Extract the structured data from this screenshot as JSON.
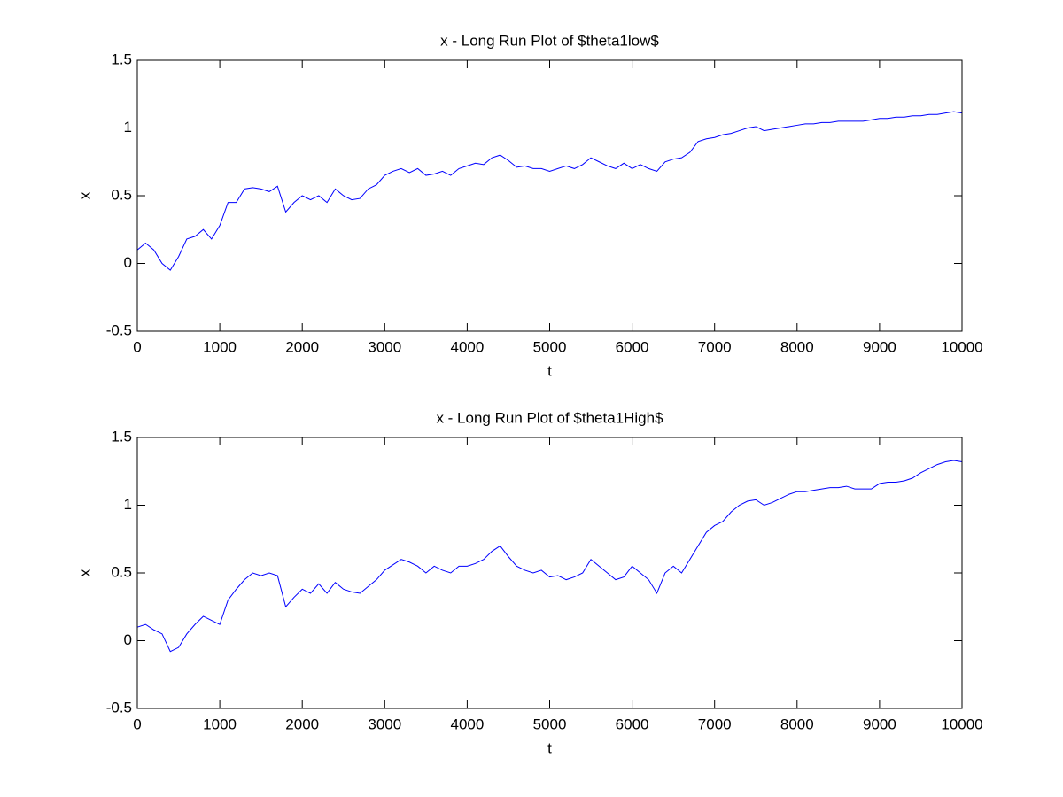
{
  "chart_data": [
    {
      "type": "line",
      "title": "x - Long Run Plot of $theta1low$",
      "x_label": "t",
      "y_label": "x",
      "color": "#0000ff",
      "x": [
        0,
        100,
        200,
        300,
        400,
        500,
        600,
        700,
        800,
        900,
        1000,
        1100,
        1200,
        1300,
        1400,
        1500,
        1600,
        1700,
        1800,
        1900,
        2000,
        2100,
        2200,
        2300,
        2400,
        2500,
        2600,
        2700,
        2800,
        2900,
        3000,
        3100,
        3200,
        3300,
        3400,
        3500,
        3600,
        3700,
        3800,
        3900,
        4000,
        4100,
        4200,
        4300,
        4400,
        4500,
        4600,
        4700,
        4800,
        4900,
        5000,
        5100,
        5200,
        5300,
        5400,
        5500,
        5600,
        5700,
        5800,
        5900,
        6000,
        6100,
        6200,
        6300,
        6400,
        6500,
        6600,
        6700,
        6800,
        6900,
        7000,
        7100,
        7200,
        7300,
        7400,
        7500,
        7600,
        7700,
        7800,
        7900,
        8000,
        8100,
        8200,
        8300,
        8400,
        8500,
        8600,
        8700,
        8800,
        8900,
        9000,
        9100,
        9200,
        9300,
        9400,
        9500,
        9600,
        9700,
        9800,
        9900,
        10000
      ],
      "values": [
        0.1,
        0.15,
        0.1,
        0.0,
        -0.05,
        0.05,
        0.18,
        0.2,
        0.25,
        0.18,
        0.28,
        0.45,
        0.45,
        0.55,
        0.56,
        0.55,
        0.53,
        0.57,
        0.38,
        0.45,
        0.5,
        0.47,
        0.5,
        0.45,
        0.55,
        0.5,
        0.47,
        0.48,
        0.55,
        0.58,
        0.65,
        0.68,
        0.7,
        0.67,
        0.7,
        0.65,
        0.66,
        0.68,
        0.65,
        0.7,
        0.72,
        0.74,
        0.73,
        0.78,
        0.8,
        0.76,
        0.71,
        0.72,
        0.7,
        0.7,
        0.68,
        0.7,
        0.72,
        0.7,
        0.73,
        0.78,
        0.75,
        0.72,
        0.7,
        0.74,
        0.7,
        0.73,
        0.7,
        0.68,
        0.75,
        0.77,
        0.78,
        0.82,
        0.9,
        0.92,
        0.93,
        0.95,
        0.96,
        0.98,
        1.0,
        1.01,
        0.98,
        0.99,
        1.0,
        1.01,
        1.02,
        1.03,
        1.03,
        1.04,
        1.04,
        1.05,
        1.05,
        1.05,
        1.05,
        1.06,
        1.07,
        1.07,
        1.08,
        1.08,
        1.09,
        1.09,
        1.1,
        1.1,
        1.11,
        1.12,
        1.11
      ],
      "xlim": [
        0,
        10000
      ],
      "xticks": [
        0,
        1000,
        2000,
        3000,
        4000,
        5000,
        6000,
        7000,
        8000,
        9000,
        10000
      ],
      "ylim": [
        -0.5,
        1.5
      ],
      "yticks": [
        -0.5,
        0,
        0.5,
        1,
        1.5
      ]
    },
    {
      "type": "line",
      "title": "x - Long Run Plot of $theta1High$",
      "x_label": "t",
      "y_label": "x",
      "color": "#0000ff",
      "x": [
        0,
        100,
        200,
        300,
        400,
        500,
        600,
        700,
        800,
        900,
        1000,
        1100,
        1200,
        1300,
        1400,
        1500,
        1600,
        1700,
        1800,
        1900,
        2000,
        2100,
        2200,
        2300,
        2400,
        2500,
        2600,
        2700,
        2800,
        2900,
        3000,
        3100,
        3200,
        3300,
        3400,
        3500,
        3600,
        3700,
        3800,
        3900,
        4000,
        4100,
        4200,
        4300,
        4400,
        4500,
        4600,
        4700,
        4800,
        4900,
        5000,
        5100,
        5200,
        5300,
        5400,
        5500,
        5600,
        5700,
        5800,
        5900,
        6000,
        6100,
        6200,
        6300,
        6400,
        6500,
        6600,
        6700,
        6800,
        6900,
        7000,
        7100,
        7200,
        7300,
        7400,
        7500,
        7600,
        7700,
        7800,
        7900,
        8000,
        8100,
        8200,
        8300,
        8400,
        8500,
        8600,
        8700,
        8800,
        8900,
        9000,
        9100,
        9200,
        9300,
        9400,
        9500,
        9600,
        9700,
        9800,
        9900,
        10000
      ],
      "values": [
        0.1,
        0.12,
        0.08,
        0.05,
        -0.08,
        -0.05,
        0.05,
        0.12,
        0.18,
        0.15,
        0.12,
        0.3,
        0.38,
        0.45,
        0.5,
        0.48,
        0.5,
        0.48,
        0.25,
        0.32,
        0.38,
        0.35,
        0.42,
        0.35,
        0.43,
        0.38,
        0.36,
        0.35,
        0.4,
        0.45,
        0.52,
        0.56,
        0.6,
        0.58,
        0.55,
        0.5,
        0.55,
        0.52,
        0.5,
        0.55,
        0.55,
        0.57,
        0.6,
        0.66,
        0.7,
        0.62,
        0.55,
        0.52,
        0.5,
        0.52,
        0.47,
        0.48,
        0.45,
        0.47,
        0.5,
        0.6,
        0.55,
        0.5,
        0.45,
        0.47,
        0.55,
        0.5,
        0.45,
        0.35,
        0.5,
        0.55,
        0.5,
        0.6,
        0.7,
        0.8,
        0.85,
        0.88,
        0.95,
        1.0,
        1.03,
        1.04,
        1.0,
        1.02,
        1.05,
        1.08,
        1.1,
        1.1,
        1.11,
        1.12,
        1.13,
        1.13,
        1.14,
        1.12,
        1.12,
        1.12,
        1.16,
        1.17,
        1.17,
        1.18,
        1.2,
        1.24,
        1.27,
        1.3,
        1.32,
        1.33,
        1.32
      ],
      "xlim": [
        0,
        10000
      ],
      "xticks": [
        0,
        1000,
        2000,
        3000,
        4000,
        5000,
        6000,
        7000,
        8000,
        9000,
        10000
      ],
      "ylim": [
        -0.5,
        1.5
      ],
      "yticks": [
        -0.5,
        0,
        0.5,
        1,
        1.5
      ]
    }
  ]
}
